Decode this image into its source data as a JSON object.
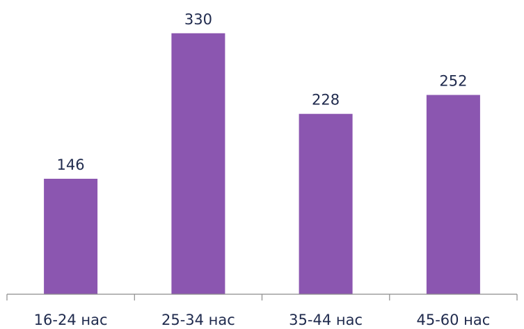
{
  "chart_data": {
    "type": "bar",
    "categories": [
      "16-24 нас",
      "25-34 нас",
      "35-44 нас",
      "45-60 нас"
    ],
    "values": [
      146,
      330,
      228,
      252
    ],
    "title": "",
    "xlabel": "",
    "ylabel": "",
    "ylim": [
      0,
      372
    ],
    "grid": false,
    "legend": "none",
    "data_labels": true,
    "colors": {
      "bar": "#8b56b0",
      "text": "#1f2a4d",
      "axis": "#8c8c8c"
    }
  }
}
